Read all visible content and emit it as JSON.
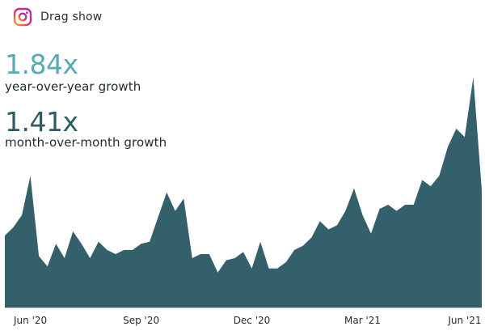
{
  "colors": {
    "area": "#34606b",
    "yoy_accent": "#5aa9b4",
    "mom_accent": "#2f5b66",
    "axis": "#c7c7c7"
  },
  "header": {
    "icon": "instagram-icon",
    "title": "Drag show"
  },
  "stats": {
    "yoy": {
      "value": "1.84x",
      "label": "year-over-year growth"
    },
    "mom": {
      "value": "1.41x",
      "label": "month-over-month growth"
    }
  },
  "chart_data": {
    "type": "area",
    "title": "Drag show",
    "xlabel": "",
    "ylabel": "",
    "grid": false,
    "x_ticks": [
      "Jun '20",
      "Sep '20",
      "Dec '20",
      "Mar '21",
      "Jun '21"
    ],
    "x_tick_index": [
      3,
      16,
      29,
      42,
      54
    ],
    "ylim": [
      0,
      100
    ],
    "values": [
      35,
      39,
      45,
      64,
      25,
      20,
      31,
      24,
      37,
      31,
      24,
      32,
      28,
      26,
      28,
      28,
      31,
      32,
      44,
      56,
      47,
      53,
      24,
      26,
      26,
      17,
      23,
      24,
      27,
      19,
      32,
      19,
      19,
      22,
      28,
      30,
      34,
      42,
      38,
      40,
      47,
      58,
      45,
      36,
      48,
      50,
      47,
      50,
      50,
      62,
      59,
      64,
      78,
      87,
      83,
      112,
      57
    ]
  }
}
